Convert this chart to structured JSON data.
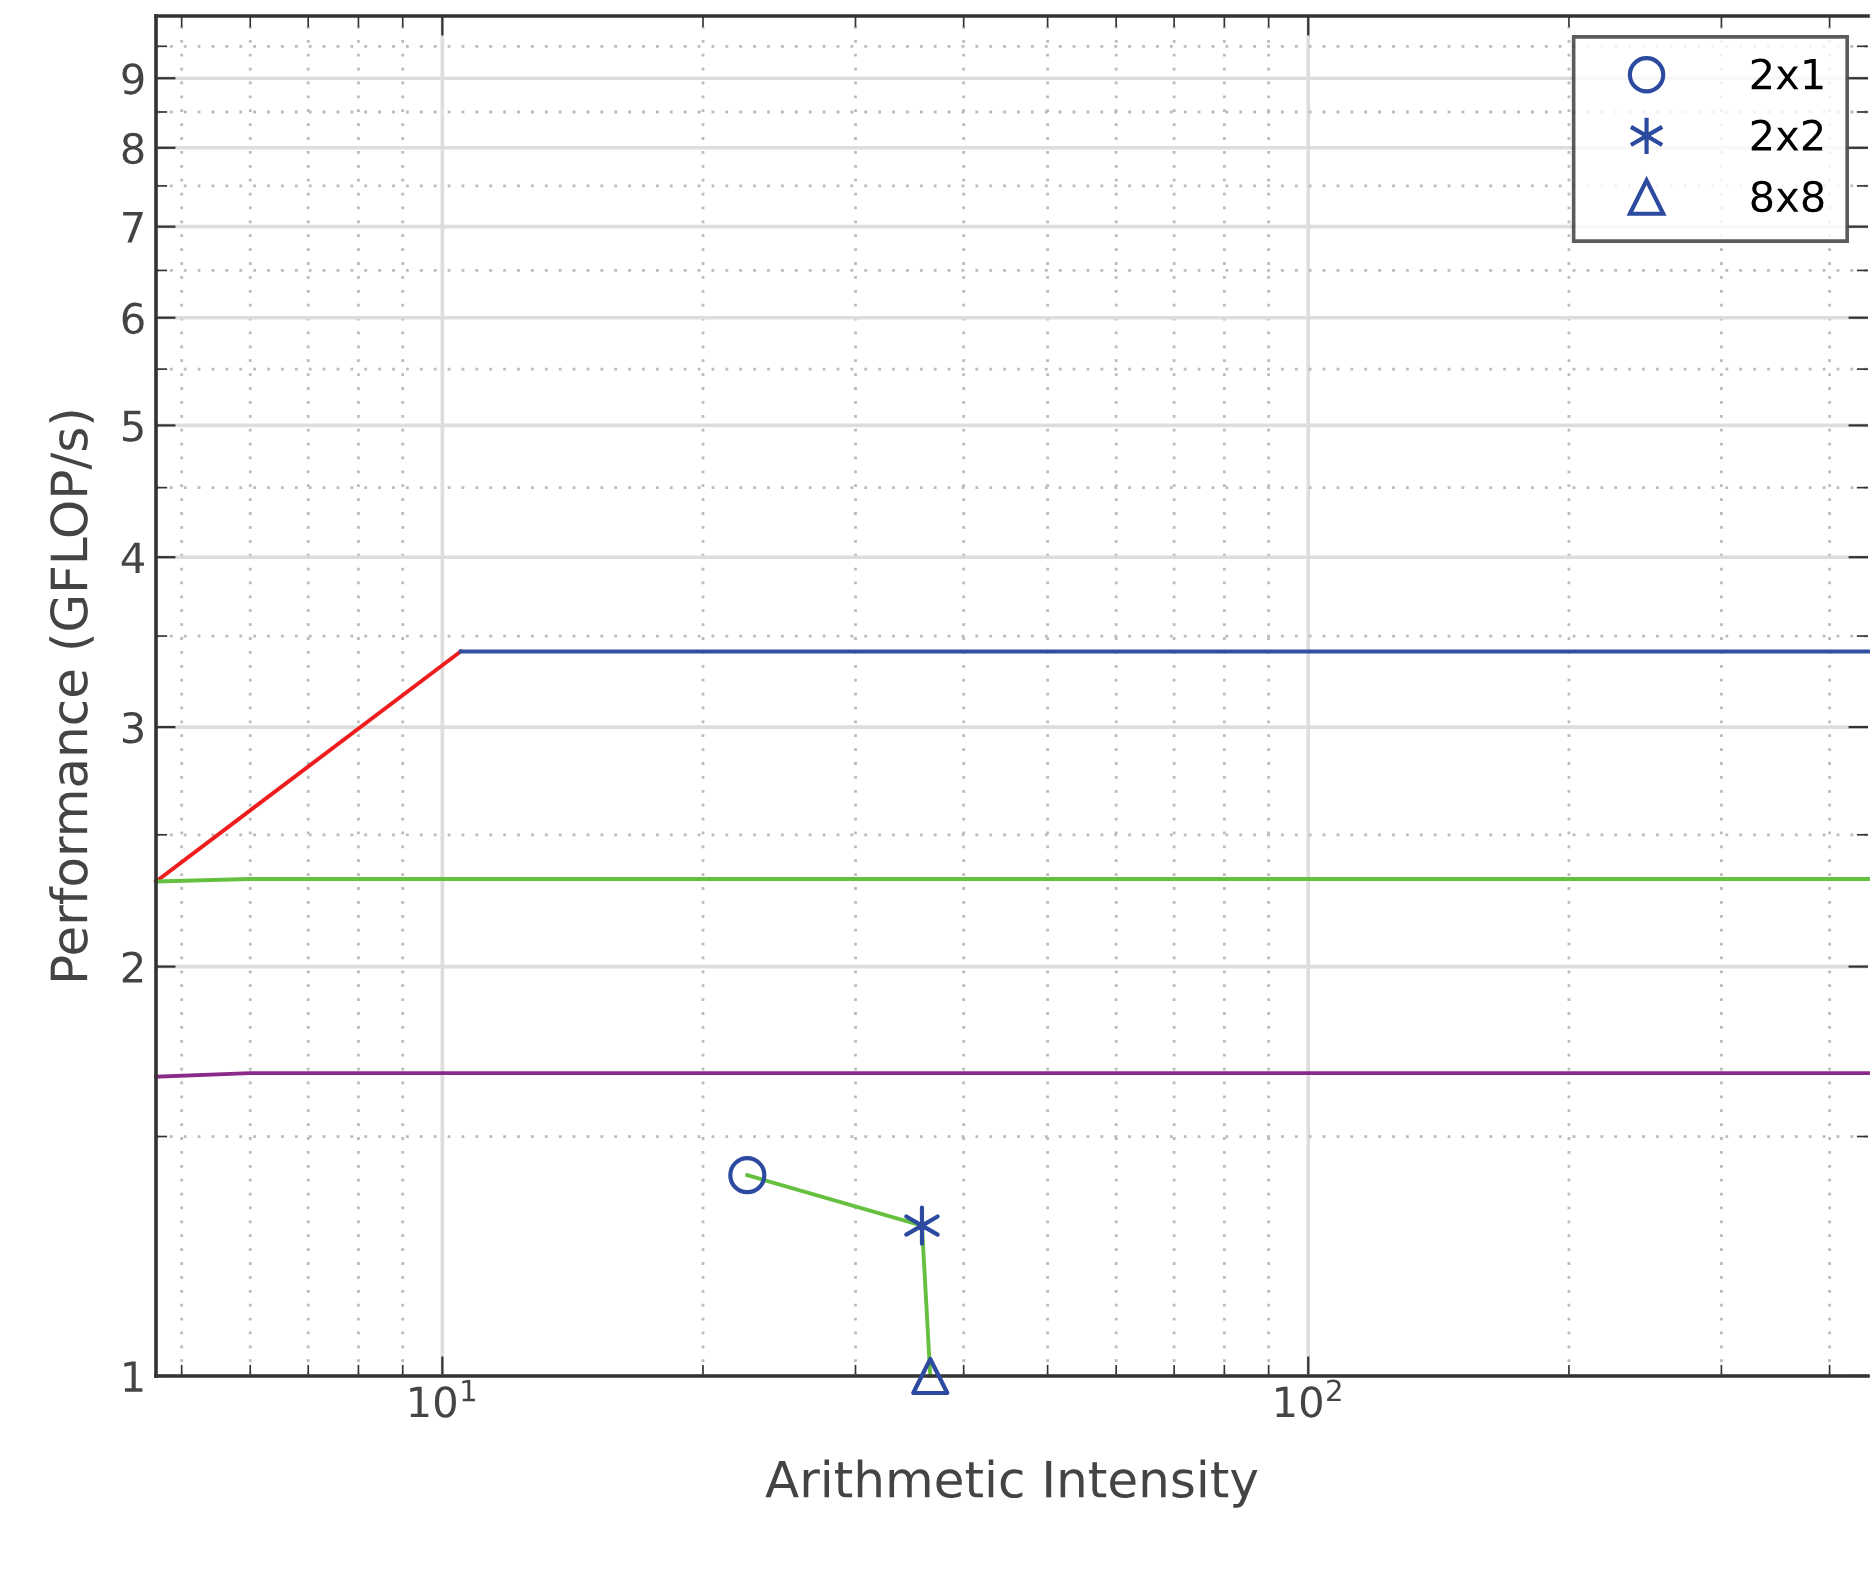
{
  "chart_data": {
    "type": "line",
    "xlabel": "Arithmetic Intensity",
    "ylabel": "Performance (GFLOP/s)",
    "log": "xy",
    "grid": true,
    "legend": "top right",
    "xlim": [
      4.67,
      443
    ],
    "ylim": [
      1,
      10
    ],
    "xticks": [
      {
        "value": 5,
        "label": null
      },
      {
        "value": 6,
        "label": null
      },
      {
        "value": 7,
        "label": null
      },
      {
        "value": 8,
        "label": null
      },
      {
        "value": 9,
        "label": null
      },
      {
        "value": 10,
        "label": "10$^{1}$"
      },
      {
        "value": 20,
        "label": null
      },
      {
        "value": 30,
        "label": null
      },
      {
        "value": 40,
        "label": null
      },
      {
        "value": 50,
        "label": null
      },
      {
        "value": 60,
        "label": null
      },
      {
        "value": 70,
        "label": null
      },
      {
        "value": 80,
        "label": null
      },
      {
        "value": 90,
        "label": null
      },
      {
        "value": 100,
        "label": "10$^{2}$"
      },
      {
        "value": 200,
        "label": null
      },
      {
        "value": 300,
        "label": null
      },
      {
        "value": 400,
        "label": null
      }
    ],
    "yticks": [
      1,
      {
        "value": 1.5,
        "label": null
      },
      2,
      {
        "value": 2.5,
        "label": null
      },
      3,
      {
        "value": 3.5,
        "label": null
      },
      4,
      {
        "value": 4.5,
        "label": null
      },
      5,
      {
        "value": 5.5,
        "label": null
      },
      6,
      {
        "value": 6.5,
        "label": null
      },
      7,
      {
        "value": 7.5,
        "label": null
      },
      8,
      {
        "value": 8.5,
        "label": null
      },
      9,
      {
        "value": 9.5,
        "label": null
      }
    ],
    "series": [
      {
        "color": "#ee1c1c",
        "x": [
          4.67,
          10.5
        ],
        "values": [
          2.31,
          3.41
        ]
      },
      {
        "color": "#3050a0",
        "x": [
          10.5,
          443
        ],
        "values": [
          3.41,
          3.41
        ]
      },
      {
        "color": "#66c040",
        "x": [
          4.67,
          6,
          443
        ],
        "values": [
          2.31,
          2.32,
          2.32
        ]
      },
      {
        "color": "#8a2a8a",
        "x": [
          4.67,
          6,
          443
        ],
        "values": [
          1.66,
          1.67,
          1.67
        ]
      },
      {
        "color": "#66c040",
        "x": [
          22.5,
          35.8,
          36.6
        ],
        "values": [
          1.405,
          1.29,
          1.0
        ]
      },
      {
        "type": "scatter",
        "name": "2x1",
        "color": "#2b4aa0",
        "marker": "circle",
        "x": [
          22.5
        ],
        "values": [
          1.405
        ]
      },
      {
        "type": "scatter",
        "name": "2x2",
        "color": "#2b4aa0",
        "marker": "cross",
        "x": [
          35.8
        ],
        "values": [
          1.29
        ]
      },
      {
        "type": "scatter",
        "name": "8x8",
        "color": "#2b4aa0",
        "marker": "triangle",
        "x": [
          36.6
        ],
        "values": [
          1.0
        ]
      }
    ]
  }
}
